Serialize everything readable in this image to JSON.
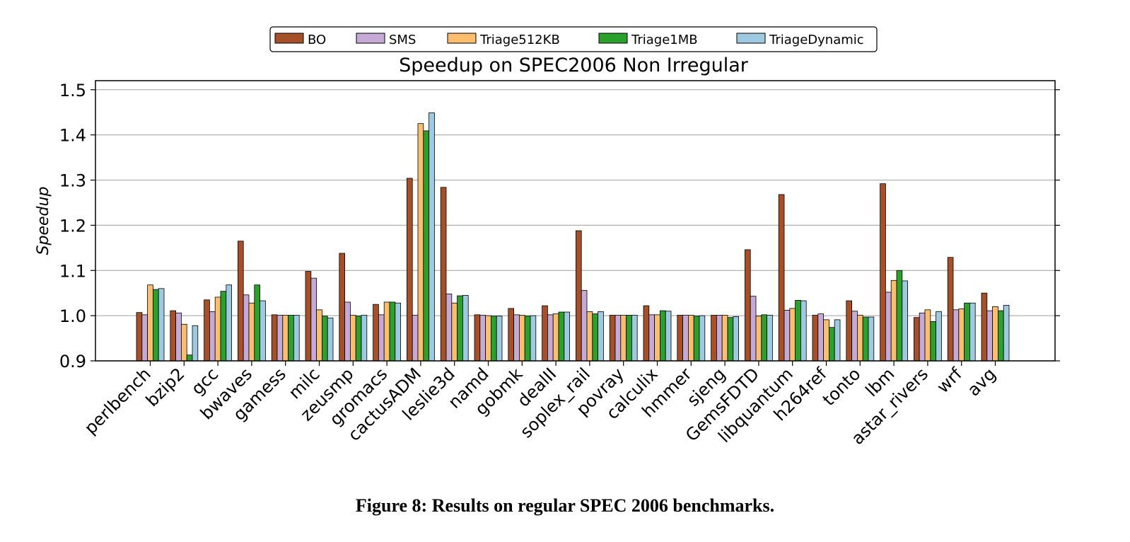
{
  "caption": "Figure 8: Results on regular SPEC 2006 benchmarks.",
  "chart_data": {
    "type": "bar",
    "title": "Speedup on SPEC2006 Non Irregular",
    "xlabel": "",
    "ylabel": "Speedup",
    "ylim": [
      0.9,
      1.52
    ],
    "yticks": [
      "0.9",
      "1.0",
      "1.1",
      "1.2",
      "1.3",
      "1.4",
      "1.5"
    ],
    "grid": "horizontal",
    "legend_position": "top-center",
    "categories": [
      "perlbench",
      "bzip2",
      "gcc",
      "bwaves",
      "gamess",
      "milc",
      "zeusmp",
      "gromacs",
      "cactusADM",
      "leslie3d",
      "namd",
      "gobmk",
      "dealII",
      "soplex_rail",
      "povray",
      "calculix",
      "hmmer",
      "sjeng",
      "GemsFDTD",
      "libquantum",
      "h264ref",
      "tonto",
      "lbm",
      "astar_rivers",
      "wrf",
      "avg"
    ],
    "series": [
      {
        "name": "BO",
        "color": "#a65029",
        "values": [
          1.007,
          1.011,
          1.035,
          1.165,
          1.002,
          1.098,
          1.138,
          1.025,
          1.304,
          1.284,
          1.002,
          1.016,
          1.022,
          1.188,
          1.001,
          1.022,
          1.001,
          1.001,
          1.146,
          1.268,
          1.001,
          1.033,
          1.292,
          0.996,
          1.129,
          1.05
        ]
      },
      {
        "name": "SMS",
        "color": "#c5a9d6",
        "values": [
          1.002,
          1.006,
          1.009,
          1.046,
          1.001,
          1.083,
          1.03,
          1.002,
          1.001,
          1.048,
          1.001,
          1.002,
          1.002,
          1.056,
          1.001,
          1.002,
          1.001,
          1.001,
          1.043,
          1.012,
          1.004,
          1.01,
          1.052,
          1.006,
          1.013,
          1.011
        ]
      },
      {
        "name": "Triage512KB",
        "color": "#fbbd6e",
        "values": [
          1.068,
          0.981,
          1.041,
          1.028,
          1.001,
          1.013,
          1.001,
          1.03,
          1.425,
          1.028,
          1.0,
          1.001,
          1.004,
          1.009,
          1.001,
          1.002,
          1.001,
          1.001,
          0.999,
          1.016,
          0.991,
          1.001,
          1.078,
          1.013,
          1.015,
          1.02
        ]
      },
      {
        "name": "Triage1MB",
        "color": "#2ca02c",
        "values": [
          1.058,
          0.913,
          1.054,
          1.068,
          1.001,
          0.999,
          0.999,
          1.03,
          1.409,
          1.044,
          0.999,
          0.999,
          1.008,
          1.004,
          1.001,
          1.011,
          0.999,
          0.996,
          1.002,
          1.034,
          0.974,
          0.997,
          1.1,
          0.987,
          1.028,
          1.011
        ]
      },
      {
        "name": "TriageDynamic",
        "color": "#9ecae1",
        "values": [
          1.06,
          0.978,
          1.068,
          1.033,
          1.001,
          0.995,
          1.001,
          1.028,
          1.449,
          1.045,
          0.999,
          1.0,
          1.008,
          1.009,
          1.001,
          1.01,
          1.0,
          0.998,
          1.001,
          1.033,
          0.991,
          0.997,
          1.077,
          1.009,
          1.028,
          1.023
        ]
      }
    ]
  }
}
